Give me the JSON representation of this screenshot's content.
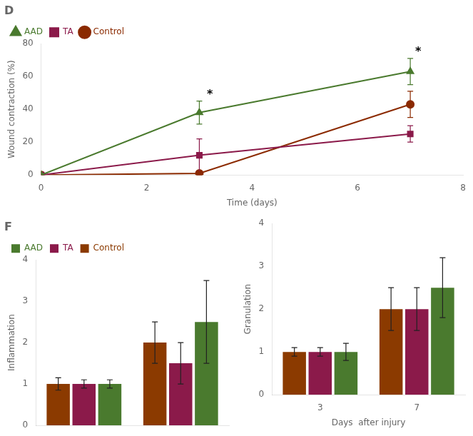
{
  "chart_data": [
    {
      "type": "line",
      "title": "D",
      "xlabel": "Time (days)",
      "ylabel": "Wound contraction (%)",
      "x": [
        0,
        3,
        7
      ],
      "series": [
        {
          "name": "AAD",
          "color": "#4a7a2e",
          "marker": "triangle",
          "values": [
            0,
            38,
            63
          ],
          "errors": [
            0,
            7,
            8
          ]
        },
        {
          "name": "TA",
          "color": "#8b1a4a",
          "marker": "square",
          "values": [
            0,
            12,
            25
          ],
          "errors": [
            0,
            10,
            5
          ]
        },
        {
          "name": "Control",
          "color": "#8b2a00",
          "marker": "circle",
          "values": [
            0,
            1,
            43
          ],
          "errors": [
            0,
            1,
            8
          ]
        }
      ],
      "xlim": [
        0,
        8
      ],
      "ylim": [
        0,
        80
      ],
      "xticks": [
        0,
        2,
        4,
        6,
        8
      ],
      "yticks": [
        0,
        20,
        40,
        60,
        80
      ],
      "grid": false,
      "legend": "upper left",
      "annotations": [
        {
          "text": "*",
          "x": 3.2,
          "y": 47
        },
        {
          "text": "*",
          "x": 7.15,
          "y": 73
        }
      ]
    },
    {
      "type": "bar",
      "title": "F",
      "ylabel": "Inflammation",
      "categories": [
        null,
        null
      ],
      "series": [
        {
          "name": "Control",
          "color": "#8b3a00",
          "values": [
            1.0,
            2.0
          ],
          "errors": [
            0.15,
            0.5
          ]
        },
        {
          "name": "TA",
          "color": "#8b1a4a",
          "values": [
            1.0,
            1.5
          ],
          "errors": [
            0.1,
            0.5
          ]
        },
        {
          "name": "AAD",
          "color": "#4a7a2e",
          "values": [
            1.0,
            2.5
          ],
          "errors": [
            0.1,
            1.0
          ]
        }
      ],
      "ylim": [
        0,
        4
      ],
      "yticks": [
        0,
        1,
        2,
        3,
        4
      ],
      "grid": false,
      "legend": "upper left",
      "tick_labels": "y"
    },
    {
      "type": "bar",
      "ylabel": "Granulation",
      "xlabel": "Days  after injury",
      "categories": [
        "3",
        "7"
      ],
      "series": [
        {
          "name": "Control",
          "color": "#8b3a00",
          "values": [
            1.0,
            2.0
          ],
          "errors": [
            0.1,
            0.5
          ]
        },
        {
          "name": "TA",
          "color": "#8b1a4a",
          "values": [
            1.0,
            2.0
          ],
          "errors": [
            0.1,
            0.5
          ]
        },
        {
          "name": "AAD",
          "color": "#4a7a2e",
          "values": [
            1.0,
            2.5
          ],
          "errors": [
            0.2,
            0.7
          ]
        }
      ],
      "ylim": [
        0,
        4
      ],
      "yticks": [
        0,
        1,
        2,
        3,
        4
      ],
      "grid": false
    }
  ]
}
